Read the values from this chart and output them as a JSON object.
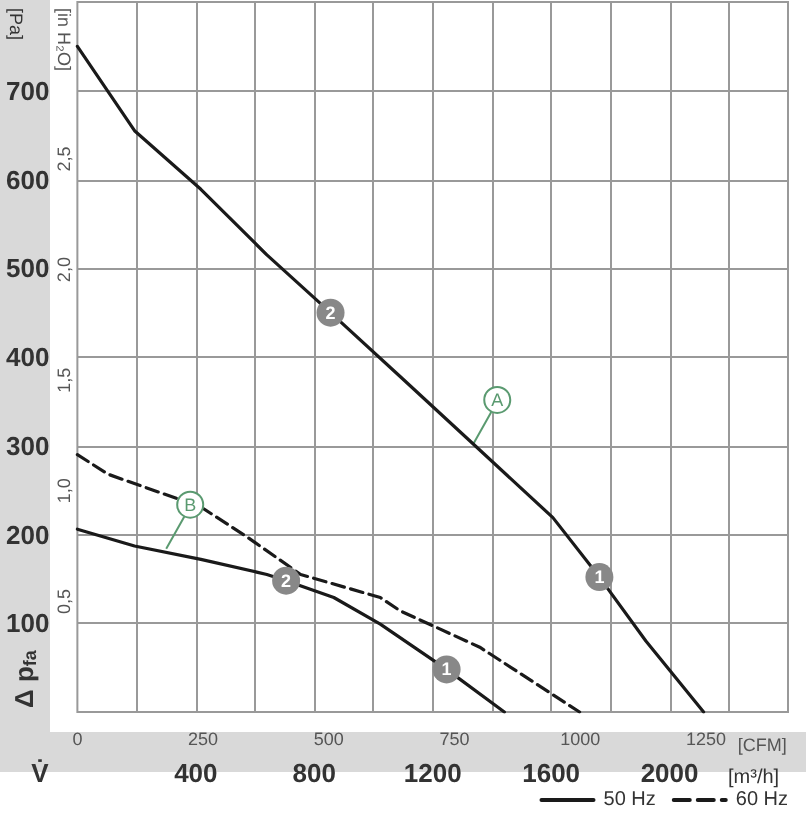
{
  "chart_data": {
    "type": "line",
    "xlabel": "[m³/h]",
    "ylabel": "[Pa]",
    "y2label": "[in H₂O]",
    "x2label": "[CFM]",
    "xlim": [
      0,
      2400
    ],
    "xticks": [
      {
        "value": 200,
        "label": null
      },
      400,
      {
        "value": 600,
        "label": null
      },
      800,
      {
        "value": 1000,
        "label": null
      },
      1200,
      {
        "value": 1400,
        "label": null
      },
      1600,
      {
        "value": 1800,
        "label": null
      },
      2000,
      {
        "value": 2200,
        "label": null
      }
    ],
    "x2lim": [
      0,
      1413
    ],
    "x2ticks": [
      0,
      250,
      500,
      750,
      1000,
      1250
    ],
    "ylim": [
      0,
      800
    ],
    "yticks": [
      100,
      200,
      300,
      400,
      500,
      600,
      700
    ],
    "y2lim": [
      0,
      3.21
    ],
    "y2ticks": [
      {
        "value": 0.5,
        "label": "0,5"
      },
      {
        "value": 1.0,
        "label": "1,0"
      },
      {
        "value": 1.5,
        "label": "1,5"
      },
      {
        "value": 2.0,
        "label": "2,0"
      },
      {
        "value": 2.5,
        "label": "2,5"
      }
    ],
    "grid": true,
    "legend": "bottom right",
    "marker": "none",
    "series": [
      {
        "name": "50 Hz",
        "color": "#1a1a1a",
        "line_style": "solid",
        "x": [
          0,
          193,
          417,
          640,
          855,
          1090,
          1337,
          1606,
          1763,
          1920,
          2115
        ],
        "values": [
          750,
          655,
          589,
          515,
          450,
          378,
          302,
          219,
          152,
          80,
          0
        ]
      },
      {
        "color": "#1a1a1a",
        "line_style": "solid",
        "x": [
          0,
          193,
          417,
          640,
          705,
          866,
          1023,
          1247,
          1442
        ],
        "values": [
          206,
          187,
          172,
          155,
          148,
          129,
          99,
          48,
          0
        ]
      },
      {
        "name": "60 Hz",
        "color": "#1a1a1a",
        "line_style": "dashed",
        "x": [
          0,
          103,
          417,
          574,
          754,
          1023,
          1090,
          1359,
          1696
        ],
        "values": [
          290,
          268,
          231,
          197,
          155,
          129,
          114,
          73,
          0
        ]
      }
    ],
    "annotations": [
      "Δ p$_{fa}$",
      "V̇",
      {
        "text": "A",
        "x": 1337,
        "y": 302
      },
      {
        "text": "B",
        "x": 300,
        "y": 184
      },
      {
        "text": "2",
        "x": 855,
        "y": 450
      },
      {
        "text": "1",
        "x": 1763,
        "y": 152
      },
      {
        "text": "2",
        "x": 705,
        "y": 148
      },
      {
        "text": "1",
        "x": 1247,
        "y": 48
      }
    ]
  }
}
